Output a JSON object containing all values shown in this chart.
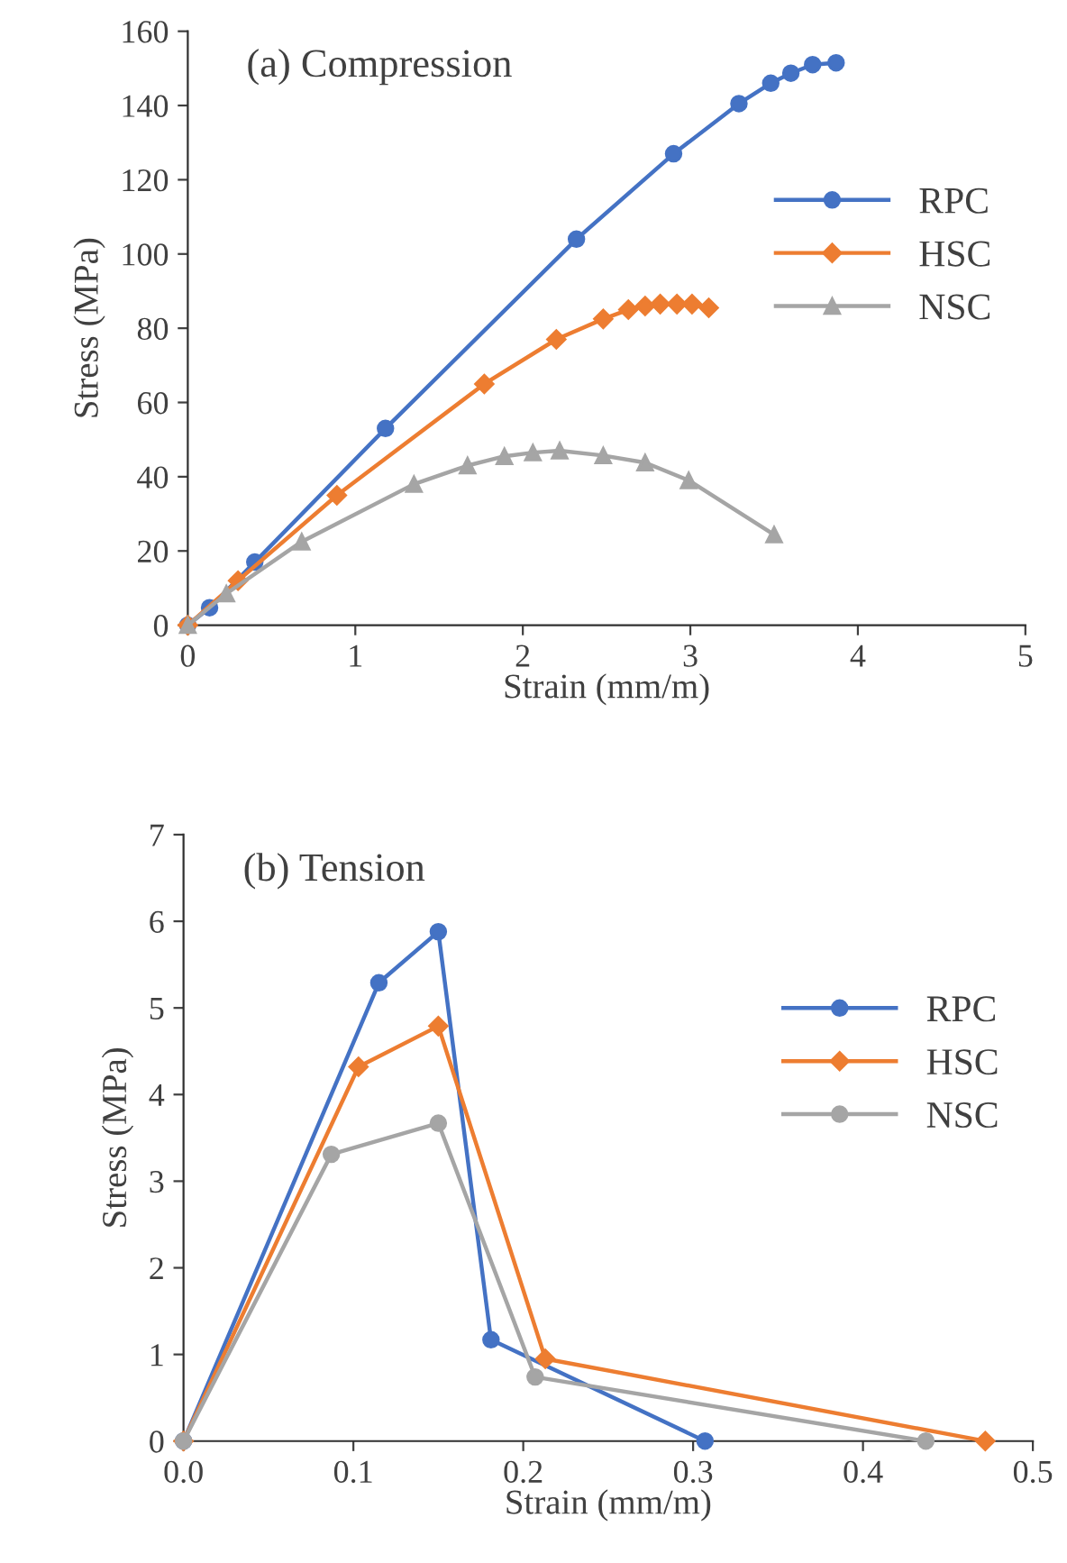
{
  "chart_data": [
    {
      "type": "line",
      "title": "(a) Compression",
      "xlabel": "Strain (mm/m)",
      "ylabel": "Stress (MPa)",
      "xlim": [
        0,
        5
      ],
      "xticks": [
        0,
        1,
        2,
        3,
        4,
        5
      ],
      "ylim": [
        0,
        160
      ],
      "yticks": [
        0,
        20,
        40,
        60,
        80,
        100,
        120,
        140,
        160
      ],
      "grid": false,
      "legend": "right",
      "line_style": "solid",
      "series": [
        {
          "name": "RPC",
          "color": "#4472c4",
          "marker": "circle",
          "x": [
            0,
            0.13,
            0.4,
            1.18,
            2.32,
            2.9,
            3.29,
            3.48,
            3.6,
            3.73,
            3.87
          ],
          "values": [
            0,
            4.7,
            17,
            53,
            104,
            127,
            140.5,
            146,
            148.7,
            151,
            151.5
          ]
        },
        {
          "name": "HSC",
          "color": "#ed7d31",
          "marker": "diamond",
          "x": [
            0,
            0.3,
            0.89,
            1.77,
            2.2,
            2.48,
            2.63,
            2.73,
            2.82,
            2.92,
            3.01,
            3.11
          ],
          "values": [
            0,
            12,
            35,
            65,
            77,
            82.5,
            85,
            86,
            86.5,
            86.5,
            86.5,
            85.5
          ]
        },
        {
          "name": "NSC",
          "color": "#a5a5a5",
          "marker": "triangle",
          "x": [
            0,
            0.23,
            0.68,
            1.35,
            1.67,
            1.89,
            2.06,
            2.22,
            2.48,
            2.73,
            2.99,
            3.5
          ],
          "values": [
            0,
            8.5,
            22.5,
            38,
            43,
            45.5,
            46.5,
            47,
            45.7,
            43.8,
            39,
            24.4
          ]
        }
      ]
    },
    {
      "type": "line",
      "title": "(b) Tension",
      "xlabel": "Strain (mm/m)",
      "ylabel": "Stress (MPa)",
      "xlim": [
        0,
        0.5
      ],
      "xticks": [
        {
          "value": 0,
          "label": "0.0"
        },
        0.1,
        0.2,
        0.3,
        0.4,
        0.5
      ],
      "ylim": [
        0,
        7
      ],
      "yticks": [
        0,
        1,
        2,
        3,
        4,
        5,
        6,
        7
      ],
      "grid": false,
      "legend": "right",
      "line_style": "solid",
      "series": [
        {
          "name": "RPC",
          "color": "#4472c4",
          "marker": "circle",
          "x": [
            0,
            0.115,
            0.15,
            0.181,
            0.307
          ],
          "values": [
            0,
            5.29,
            5.88,
            1.17,
            0
          ]
        },
        {
          "name": "HSC",
          "color": "#ed7d31",
          "marker": "diamond",
          "x": [
            0,
            0.103,
            0.15,
            0.213,
            0.472
          ],
          "values": [
            0,
            4.32,
            4.79,
            0.95,
            0
          ]
        },
        {
          "name": "NSC",
          "color": "#a5a5a5",
          "marker": "circle",
          "x": [
            0,
            0.087,
            0.15,
            0.207,
            0.437
          ],
          "values": [
            0,
            3.31,
            3.67,
            0.74,
            0
          ]
        }
      ]
    }
  ]
}
